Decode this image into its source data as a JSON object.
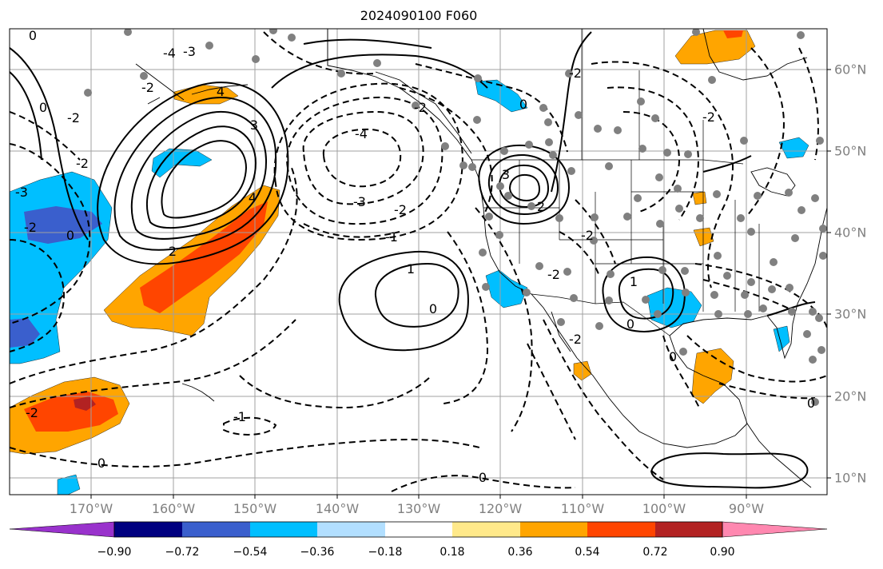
{
  "title": "2024090100 F060",
  "map": {
    "lon_labels": [
      "170°W",
      "160°W",
      "150°W",
      "140°W",
      "130°W",
      "120°W",
      "110°W",
      "100°W",
      "90°W"
    ],
    "lat_labels": [
      "60°N",
      "50°N",
      "40°N",
      "30°N",
      "20°N",
      "10°N"
    ],
    "contour_labels": {
      "neg4": "-4",
      "neg3": "-3",
      "neg2": "-2",
      "neg1": "-1",
      "zero": "0",
      "pos1": "1",
      "pos2": "2",
      "pos3": "3",
      "pos4": "4"
    }
  },
  "colorbar": {
    "tick_labels": [
      "−0.90",
      "−0.72",
      "−0.54",
      "−0.36",
      "−0.18",
      "0.18",
      "0.36",
      "0.54",
      "0.72",
      "0.90"
    ],
    "colors": [
      "#9932cc",
      "#000080",
      "#3a5fcd",
      "#00bfff",
      "#b2dfff",
      "#ffffff",
      "#ffe98a",
      "#ffa500",
      "#ff4500",
      "#b22222",
      "#ff88b0"
    ]
  }
}
